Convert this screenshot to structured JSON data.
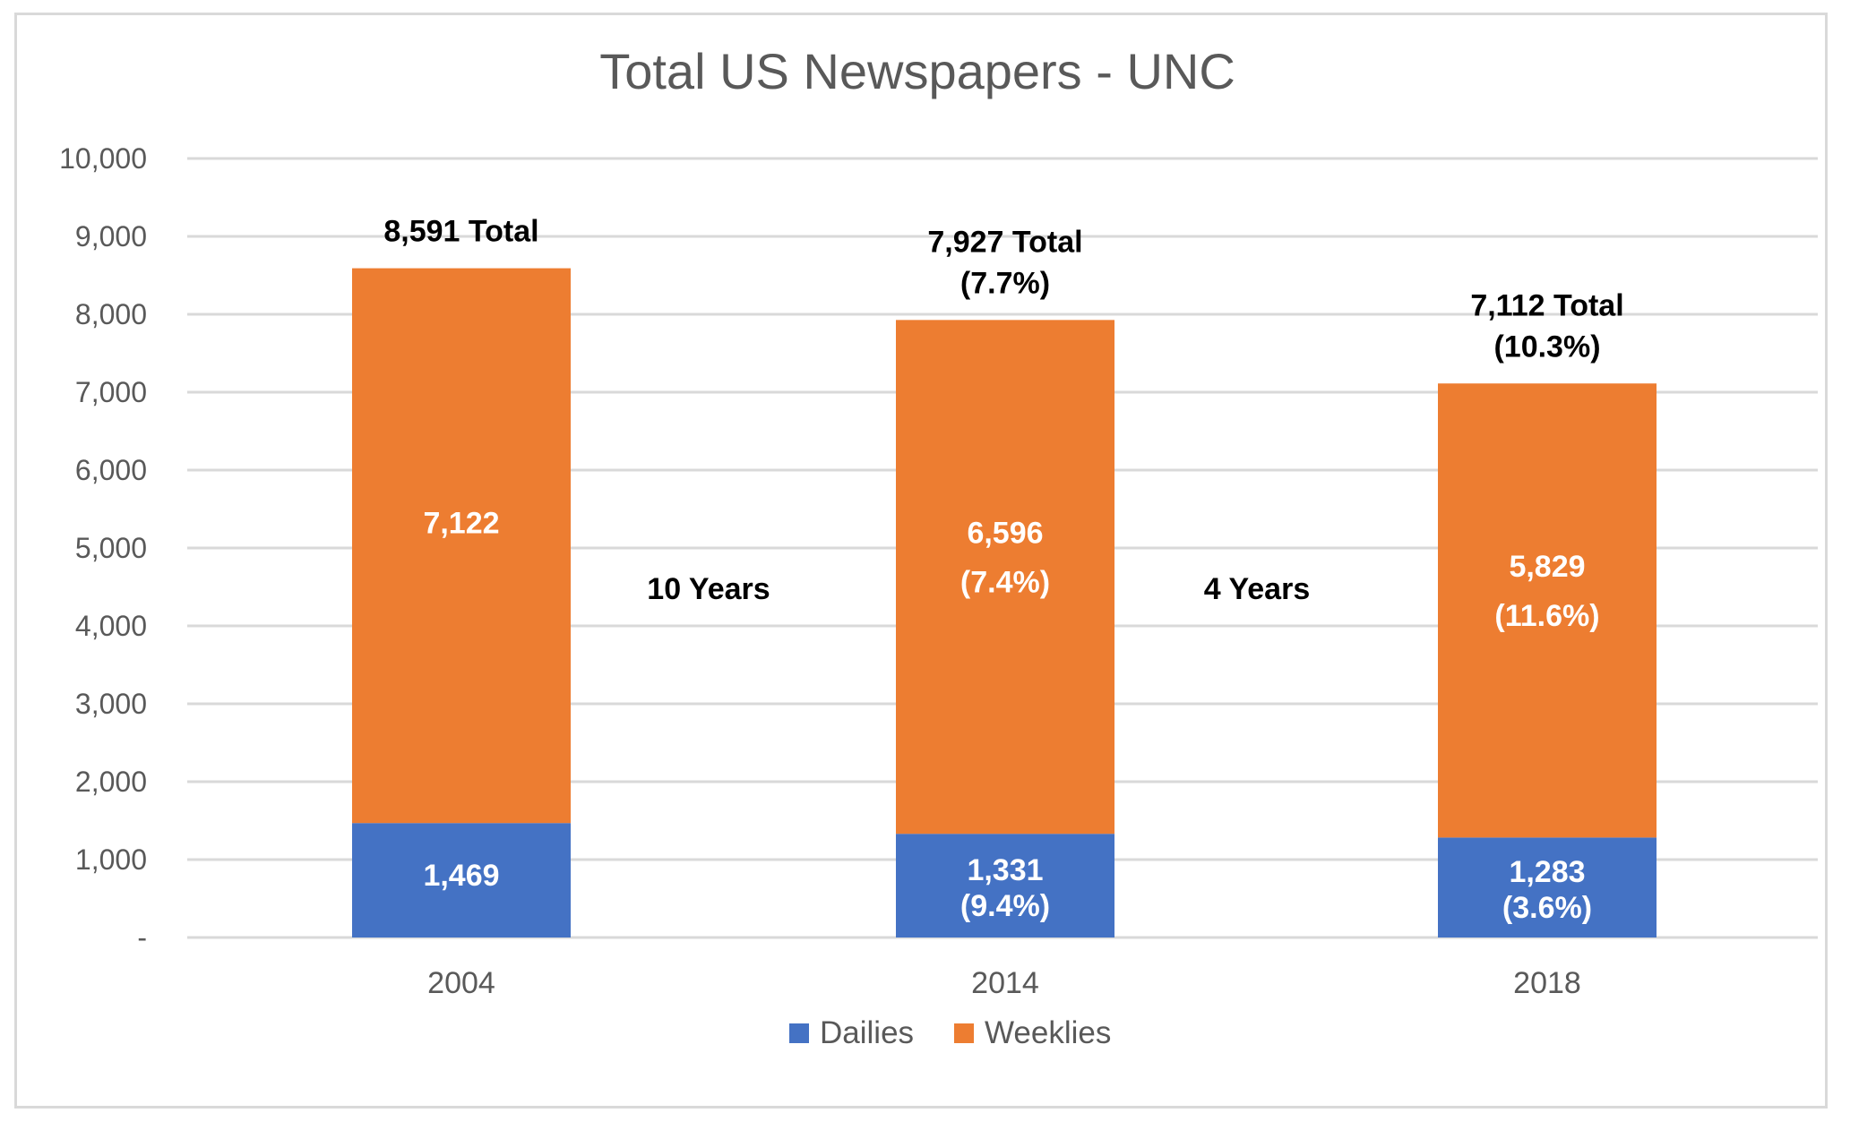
{
  "chart_data": {
    "type": "bar",
    "stacked": true,
    "title": "Total US Newspapers - UNC",
    "categories": [
      "2004",
      "2014",
      "2018"
    ],
    "series": [
      {
        "name": "Dailies",
        "color": "#4472c4",
        "values": [
          1469,
          1331,
          1283
        ]
      },
      {
        "name": "Weeklies",
        "color": "#ed7d31",
        "values": [
          7122,
          6596,
          5829
        ]
      }
    ],
    "segment_labels": [
      [
        [
          "1,469"
        ],
        [
          "1,331",
          "(9.4%)"
        ],
        [
          "1,283",
          "(3.6%)"
        ]
      ],
      [
        [
          "7,122"
        ],
        [
          "6,596",
          "(7.4%)"
        ],
        [
          "5,829",
          "(11.6%)"
        ]
      ]
    ],
    "totals": [
      {
        "value": 8591,
        "lines": [
          "8,591 Total"
        ]
      },
      {
        "value": 7927,
        "lines": [
          "7,927 Total",
          "(7.7%)"
        ]
      },
      {
        "value": 7112,
        "lines": [
          "7,112 Total",
          "(10.3%)"
        ]
      }
    ],
    "annotations": [
      "10 Years",
      "4 Years"
    ],
    "ylim": [
      0,
      10000
    ],
    "yticks": [
      0,
      1000,
      2000,
      3000,
      4000,
      5000,
      6000,
      7000,
      8000,
      9000,
      10000
    ],
    "ytick_labels": [
      "-",
      "1,000",
      "2,000",
      "3,000",
      "4,000",
      "5,000",
      "6,000",
      "7,000",
      "8,000",
      "9,000",
      "10,000"
    ],
    "grid": true,
    "legend_position": "bottom",
    "xlabel": "",
    "ylabel": "",
    "gridline_color": "#d9d9d9",
    "text_color": "#595959"
  }
}
